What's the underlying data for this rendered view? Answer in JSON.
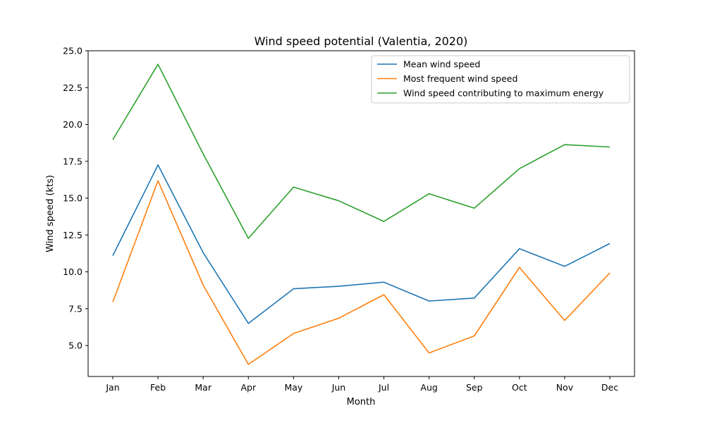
{
  "chart_data": {
    "type": "line",
    "title": "Wind speed potential (Valentia, 2020)",
    "xlabel": "Month",
    "ylabel": "Wind speed (kts)",
    "categories": [
      "Jan",
      "Feb",
      "Mar",
      "Apr",
      "May",
      "Jun",
      "Jul",
      "Aug",
      "Sep",
      "Oct",
      "Nov",
      "Dec"
    ],
    "ylim": [
      2.9,
      25.0
    ],
    "yticks": [
      "5.0",
      "7.5",
      "10.0",
      "12.5",
      "15.0",
      "17.5",
      "20.0",
      "22.5",
      "25.0"
    ],
    "grid": false,
    "legend_position": "top-right",
    "series": [
      {
        "name": "Mean wind speed",
        "color": "#1f77b4",
        "values": [
          11.1,
          17.25,
          11.3,
          6.5,
          8.85,
          9.02,
          9.3,
          8.02,
          8.22,
          11.57,
          10.37,
          11.92
        ]
      },
      {
        "name": "Most frequent wind speed",
        "color": "#ff7f0e",
        "values": [
          7.95,
          16.18,
          9.1,
          3.72,
          5.82,
          6.85,
          8.45,
          4.5,
          5.65,
          10.3,
          6.7,
          9.92
        ]
      },
      {
        "name": "Wind speed contributing to maximum energy",
        "color": "#2ca02c",
        "values": [
          18.97,
          24.08,
          18.0,
          12.27,
          15.75,
          14.82,
          13.42,
          15.3,
          14.32,
          17.0,
          18.63,
          18.47
        ]
      }
    ]
  }
}
